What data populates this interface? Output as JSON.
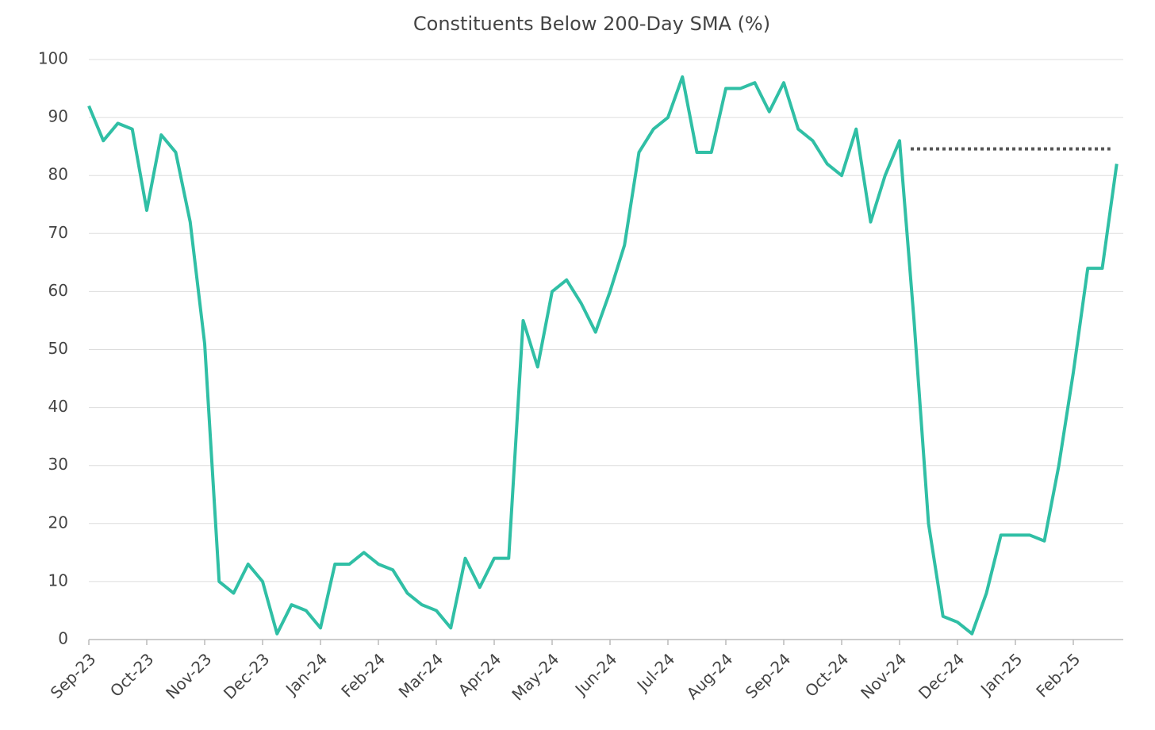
{
  "chart_data": {
    "type": "line",
    "title": "Constituents Below 200-Day SMA (%)",
    "categories": [
      "Sep-23",
      null,
      null,
      null,
      "Oct-23",
      null,
      null,
      null,
      "Nov-23",
      null,
      null,
      null,
      "Dec-23",
      null,
      null,
      null,
      "Jan-24",
      null,
      null,
      null,
      "Feb-24",
      null,
      null,
      null,
      "Mar-24",
      null,
      null,
      null,
      "Apr-24",
      null,
      null,
      null,
      "May-24",
      null,
      null,
      null,
      "Jun-24",
      null,
      null,
      null,
      "Jul-24",
      null,
      null,
      null,
      "Aug-24",
      null,
      null,
      null,
      "Sep-24",
      null,
      null,
      null,
      "Oct-24",
      null,
      null,
      null,
      "Nov-24",
      null,
      null,
      null,
      "Dec-24",
      null,
      null,
      null,
      "Jan-25",
      null,
      null,
      null,
      "Feb-25",
      null,
      null,
      null
    ],
    "series": [
      {
        "name": "Constituents Below 200-Day SMA",
        "color": "#30bfa5",
        "values": [
          92,
          86,
          89,
          88,
          74,
          87,
          84,
          72,
          51,
          10,
          8,
          13,
          10,
          1,
          6,
          5,
          2,
          13,
          13,
          15,
          13,
          12,
          8,
          6,
          5,
          2,
          14,
          9,
          14,
          14,
          55,
          47,
          60,
          62,
          58,
          53,
          60,
          68,
          84,
          88,
          90,
          97,
          84,
          84,
          95,
          95,
          96,
          91,
          96,
          88,
          86,
          82,
          80,
          88,
          72,
          80,
          86,
          55,
          20,
          4,
          3,
          1,
          8,
          18,
          18,
          18,
          17,
          30,
          46,
          64,
          64,
          82
        ]
      }
    ],
    "reference_line": {
      "value": 84.6,
      "from": "Nov-24",
      "color": "#555555"
    },
    "ylim": [
      0,
      100
    ],
    "yticks": [
      0,
      10,
      20,
      30,
      40,
      50,
      60,
      70,
      80,
      90,
      100
    ],
    "grid": true
  }
}
